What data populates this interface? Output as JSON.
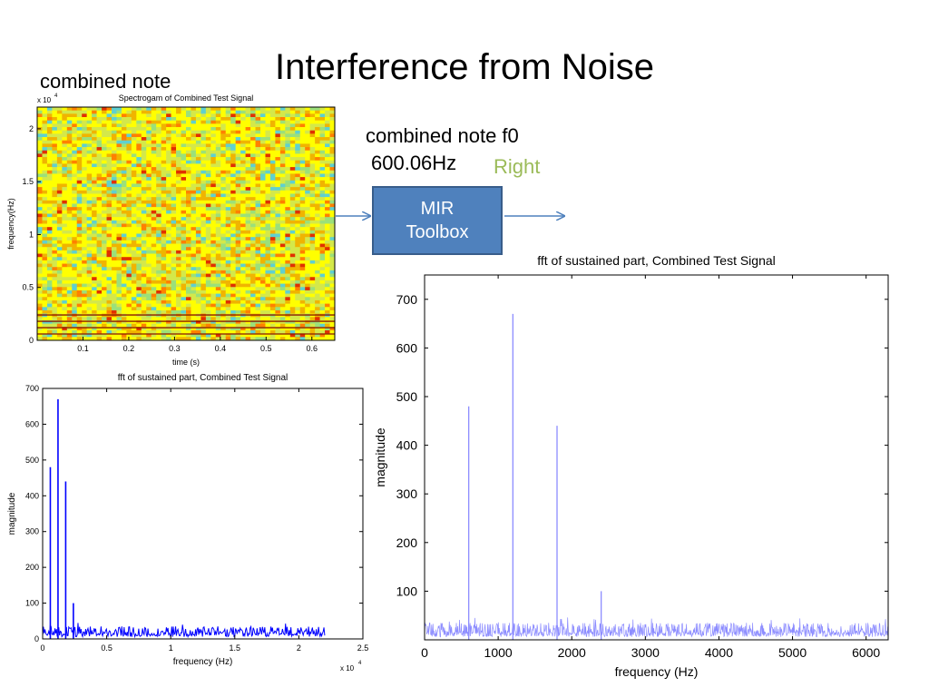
{
  "slide": {
    "title": "Interference from Noise",
    "label_combined_note": "combined note",
    "label_f0": "combined note f0",
    "label_f0_value": "600.06Hz",
    "label_verdict": "Right",
    "mir_box_line1": "MIR",
    "mir_box_line2": "Toolbox"
  },
  "colors": {
    "accent": "#4f81bd",
    "verdict_green": "#9bbb59",
    "fft_small_line": "#0000ff",
    "fft_large_line": "#8c8cff",
    "arrow": "#4f81bd"
  },
  "chart_data": [
    {
      "id": "spectrogram",
      "type": "heatmap",
      "title": "Spectrogam of Combined Test Signal",
      "xlabel": "time (s)",
      "ylabel": "frequency(Hz)",
      "xlim": [
        0,
        0.65
      ],
      "ylim": [
        0,
        22050
      ],
      "xticks": [
        0.1,
        0.2,
        0.3,
        0.4,
        0.5,
        0.6
      ],
      "xtick_labels": [
        "0.1",
        "0.2",
        "0.3",
        "0.4",
        "0.5",
        "0.6"
      ],
      "yticks": [
        0,
        5000,
        10000,
        15000,
        20000
      ],
      "ytick_labels": [
        "0",
        "0.5",
        "1",
        "1.5",
        "2"
      ],
      "y_exponent_label": "x 10",
      "y_exponent_power": "4",
      "description_colors": [
        "#ffff00",
        "#d4e84a",
        "#f0b400",
        "#9be07a",
        "#5fd0d0",
        "#ff8000",
        "#e03000"
      ],
      "harmonic_rows_hz": [
        600,
        1200,
        1800,
        2400
      ]
    },
    {
      "id": "fft_small",
      "type": "line",
      "title": "fft of sustained part, Combined Test Signal",
      "xlabel": "frequency (Hz)",
      "ylabel": "magnitude",
      "xlim": [
        0,
        25000
      ],
      "ylim": [
        0,
        700
      ],
      "xticks": [
        0,
        5000,
        10000,
        15000,
        20000,
        25000
      ],
      "xtick_labels": [
        "0",
        "0.5",
        "1",
        "1.5",
        "2",
        "2.5"
      ],
      "yticks": [
        0,
        100,
        200,
        300,
        400,
        500,
        600,
        700
      ],
      "ytick_labels": [
        "0",
        "100",
        "200",
        "300",
        "400",
        "500",
        "600",
        "700"
      ],
      "x_exponent_label": "x 10",
      "x_exponent_power": "4",
      "data_x_max": 22050,
      "noise_floor": [
        15,
        35
      ],
      "peaks": [
        {
          "x": 600,
          "y": 480
        },
        {
          "x": 1200,
          "y": 670
        },
        {
          "x": 1800,
          "y": 440
        },
        {
          "x": 2400,
          "y": 100
        }
      ]
    },
    {
      "id": "fft_large",
      "type": "line",
      "title": "fft of sustained part, Combined Test Signal",
      "xlabel": "frequency (Hz)",
      "ylabel": "magnitude",
      "xlim": [
        0,
        6300
      ],
      "ylim": [
        0,
        750
      ],
      "xticks": [
        0,
        1000,
        2000,
        3000,
        4000,
        5000,
        6000
      ],
      "xtick_labels": [
        "0",
        "1000",
        "2000",
        "3000",
        "4000",
        "5000",
        "6000"
      ],
      "yticks": [
        100,
        200,
        300,
        400,
        500,
        600,
        700
      ],
      "ytick_labels": [
        "100",
        "200",
        "300",
        "400",
        "500",
        "600",
        "700"
      ],
      "noise_floor": [
        15,
        35
      ],
      "peaks": [
        {
          "x": 600,
          "y": 480
        },
        {
          "x": 1200,
          "y": 670
        },
        {
          "x": 1800,
          "y": 440
        },
        {
          "x": 2400,
          "y": 100
        }
      ]
    }
  ]
}
